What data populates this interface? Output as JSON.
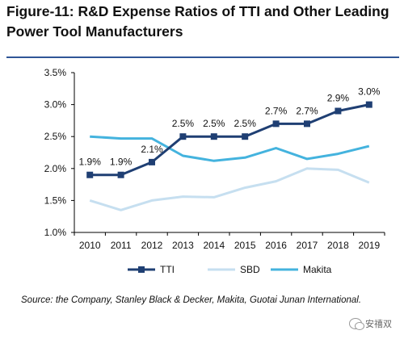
{
  "title": "Figure-11: R&D Expense Ratios of TTI and Other Leading Power Tool Manufacturers",
  "source": "Source: the Company, Stanley Black & Decker, Makita, Guotai Junan International.",
  "watermark": "安禧双",
  "colors": {
    "TTI": "#1f3f73",
    "SBD": "#c6dff0",
    "Makita": "#44b3de",
    "axis": "#000000",
    "rule": "#2f5597"
  },
  "chart_data": {
    "type": "line",
    "title": "Figure-11: R&D Expense Ratios of TTI and Other Leading Power Tool Manufacturers",
    "x": [
      "2010",
      "2011",
      "2012",
      "2013",
      "2014",
      "2015",
      "2016",
      "2017",
      "2018",
      "2019"
    ],
    "ylim": [
      1.0,
      3.5
    ],
    "yticks": [
      1.0,
      1.5,
      2.0,
      2.5,
      3.0,
      3.5
    ],
    "ytick_labels": [
      "1.0%",
      "1.5%",
      "2.0%",
      "2.5%",
      "3.0%",
      "3.5%"
    ],
    "grid": false,
    "legend_position": "bottom",
    "series": [
      {
        "name": "TTI",
        "values": [
          1.9,
          1.9,
          2.1,
          2.5,
          2.5,
          2.5,
          2.7,
          2.7,
          2.9,
          3.0
        ],
        "labels": [
          "1.9%",
          "1.9%",
          "2.1%",
          "2.5%",
          "2.5%",
          "2.5%",
          "2.7%",
          "2.7%",
          "2.9%",
          "3.0%"
        ],
        "markers": true
      },
      {
        "name": "SBD",
        "values": [
          1.5,
          1.35,
          1.5,
          1.56,
          1.55,
          1.7,
          1.8,
          2.0,
          1.98,
          1.78
        ]
      },
      {
        "name": "Makita",
        "values": [
          2.5,
          2.47,
          2.47,
          2.2,
          2.12,
          2.17,
          2.32,
          2.15,
          2.23,
          2.35
        ]
      }
    ]
  }
}
